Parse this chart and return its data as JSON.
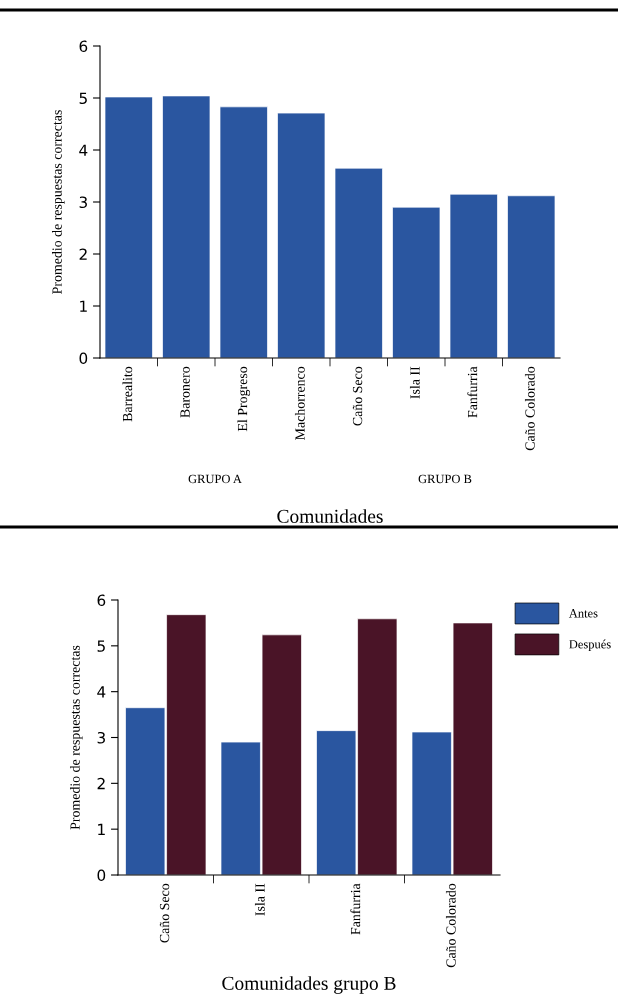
{
  "chart_data": [
    {
      "type": "bar",
      "ylabel": "Promedio de respuestas correctas",
      "xlabel": "Comunidades",
      "categories": [
        "Barrealito",
        "Baronero",
        "El Progreso",
        "Machorrenco",
        "Caño Seco",
        "Isla II",
        "Fanfurria",
        "Caño Colorado"
      ],
      "series": [
        {
          "color": "#2a56a0",
          "values": [
            5.02,
            5.04,
            4.83,
            4.71,
            3.65,
            2.9,
            3.15,
            3.12
          ]
        }
      ],
      "ylim": [
        0,
        6
      ],
      "yticks": [
        0,
        1,
        2,
        3,
        4,
        5,
        6
      ],
      "grid": false,
      "legend": false,
      "annotations": [
        "GRUPO A",
        "GRUPO B"
      ]
    },
    {
      "type": "bar",
      "ylabel": "Promedio de respuestas correctas",
      "xlabel": "Comunidades grupo B",
      "categories": [
        "Caño Seco",
        "Isla II",
        "Fanfurria",
        "Caño Colorado"
      ],
      "series": [
        {
          "name": "Antes",
          "color": "#2a56a0",
          "values": [
            3.65,
            2.9,
            3.15,
            3.12
          ]
        },
        {
          "name": "Después",
          "color": "#4a1427",
          "values": [
            5.68,
            5.24,
            5.59,
            5.5
          ]
        }
      ],
      "ylim": [
        0,
        6
      ],
      "yticks": [
        0,
        1,
        2,
        3,
        4,
        5,
        6
      ],
      "grid": false,
      "legend": "top right"
    }
  ]
}
